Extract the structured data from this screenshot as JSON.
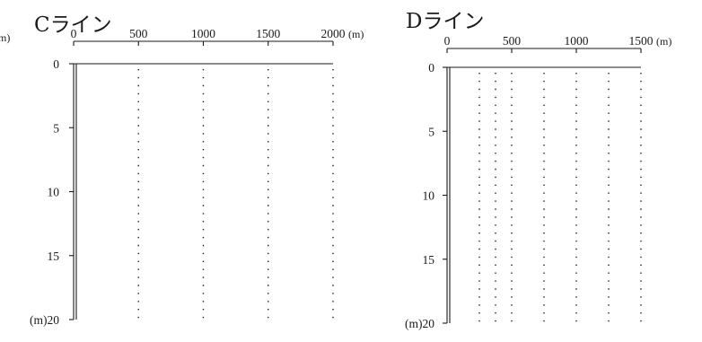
{
  "chart_data": [
    {
      "type": "line",
      "title": "Cライン",
      "x_unit": "(m)",
      "y_unit": "(m)",
      "x_ticks": [
        0,
        500,
        1000,
        1500,
        2000
      ],
      "y_ticks": [
        0,
        5,
        10,
        15,
        20
      ],
      "xlim": [
        0,
        2000
      ],
      "ylim": [
        0,
        20
      ],
      "y_inverted": true,
      "grid": "dotted-vertical",
      "stations_x": [
        500,
        1000,
        1500,
        2000
      ]
    },
    {
      "type": "line",
      "title": "Dライン",
      "x_unit": "(m)",
      "y_unit": "(m)",
      "x_ticks": [
        0,
        500,
        1000,
        1500
      ],
      "y_ticks": [
        0,
        5,
        10,
        15,
        20
      ],
      "xlim": [
        0,
        1500
      ],
      "ylim": [
        0,
        20
      ],
      "y_inverted": true,
      "grid": "dotted-vertical",
      "stations_x": [
        250,
        375,
        500,
        750,
        1000,
        1250,
        1500
      ]
    }
  ]
}
